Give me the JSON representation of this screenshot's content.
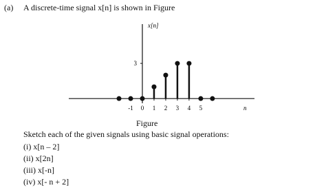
{
  "problem": {
    "label": "(a)",
    "text": "A discrete-time signal x[n] is shown in Figure"
  },
  "figure": {
    "type": "stem",
    "y_label": "x[n]",
    "x_label": "n",
    "x": [
      -2,
      -1,
      0,
      1,
      2,
      3,
      4,
      5,
      6
    ],
    "values": [
      0,
      0,
      0,
      1,
      2,
      3,
      3,
      0,
      0
    ],
    "xlim": [
      -6.3,
      9.6
    ],
    "ylim": [
      -0.4,
      6.35
    ],
    "xticks": [
      -1,
      0,
      1,
      2,
      3,
      4,
      5
    ],
    "yticks": [
      3
    ],
    "color": "#111111",
    "caption": "Figure"
  },
  "instruction": "Sketch each of the given signals using basic signal operations:",
  "items": [
    "(i) x[n – 2]",
    "(ii) x[2n]",
    "(iii) x[-n]",
    "(iv) x[- n + 2]"
  ]
}
